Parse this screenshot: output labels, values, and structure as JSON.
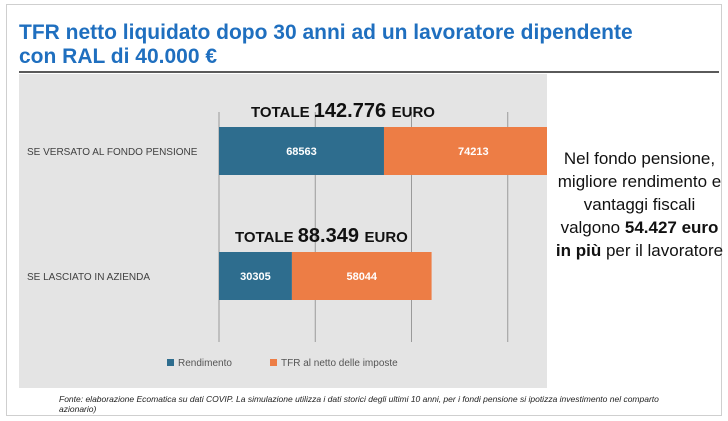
{
  "title": "TFR netto liquidato dopo 30 anni ad un lavoratore dipendente con RAL di 40.000 €",
  "chart_data": {
    "type": "bar",
    "orientation": "horizontal",
    "stacked": true,
    "categories": [
      "SE VERSATO AL FONDO PENSIONE",
      "SE LASCIATO IN AZIENDA"
    ],
    "series": [
      {
        "name": "Rendimento",
        "values": [
          68563,
          30305
        ],
        "color": "#2e6d8e"
      },
      {
        "name": "TFR al netto delle imposte",
        "values": [
          74213,
          58044
        ],
        "color": "#ed7d45"
      }
    ],
    "totals": [
      {
        "prefix": "TOTALE",
        "value": "142.776",
        "suffix": "EURO"
      },
      {
        "prefix": "TOTALE",
        "value": "88.349",
        "suffix": "EURO"
      }
    ],
    "xlim": [
      0,
      160000
    ],
    "grid": true,
    "legend": "bottom"
  },
  "side_note": {
    "part1": "Nel fondo pensione, migliore rendimento e vantaggi fiscali valgono",
    "highlight": "54.427 euro in più",
    "part2": "per il lavoratore"
  },
  "source": "Fonte: elaborazione Ecomatica su dati COVIP. La simulazione utilizza i dati storici degli ultimi 10 anni, per i fondi pensione si ipotizza investimento nel comparto azionario)"
}
